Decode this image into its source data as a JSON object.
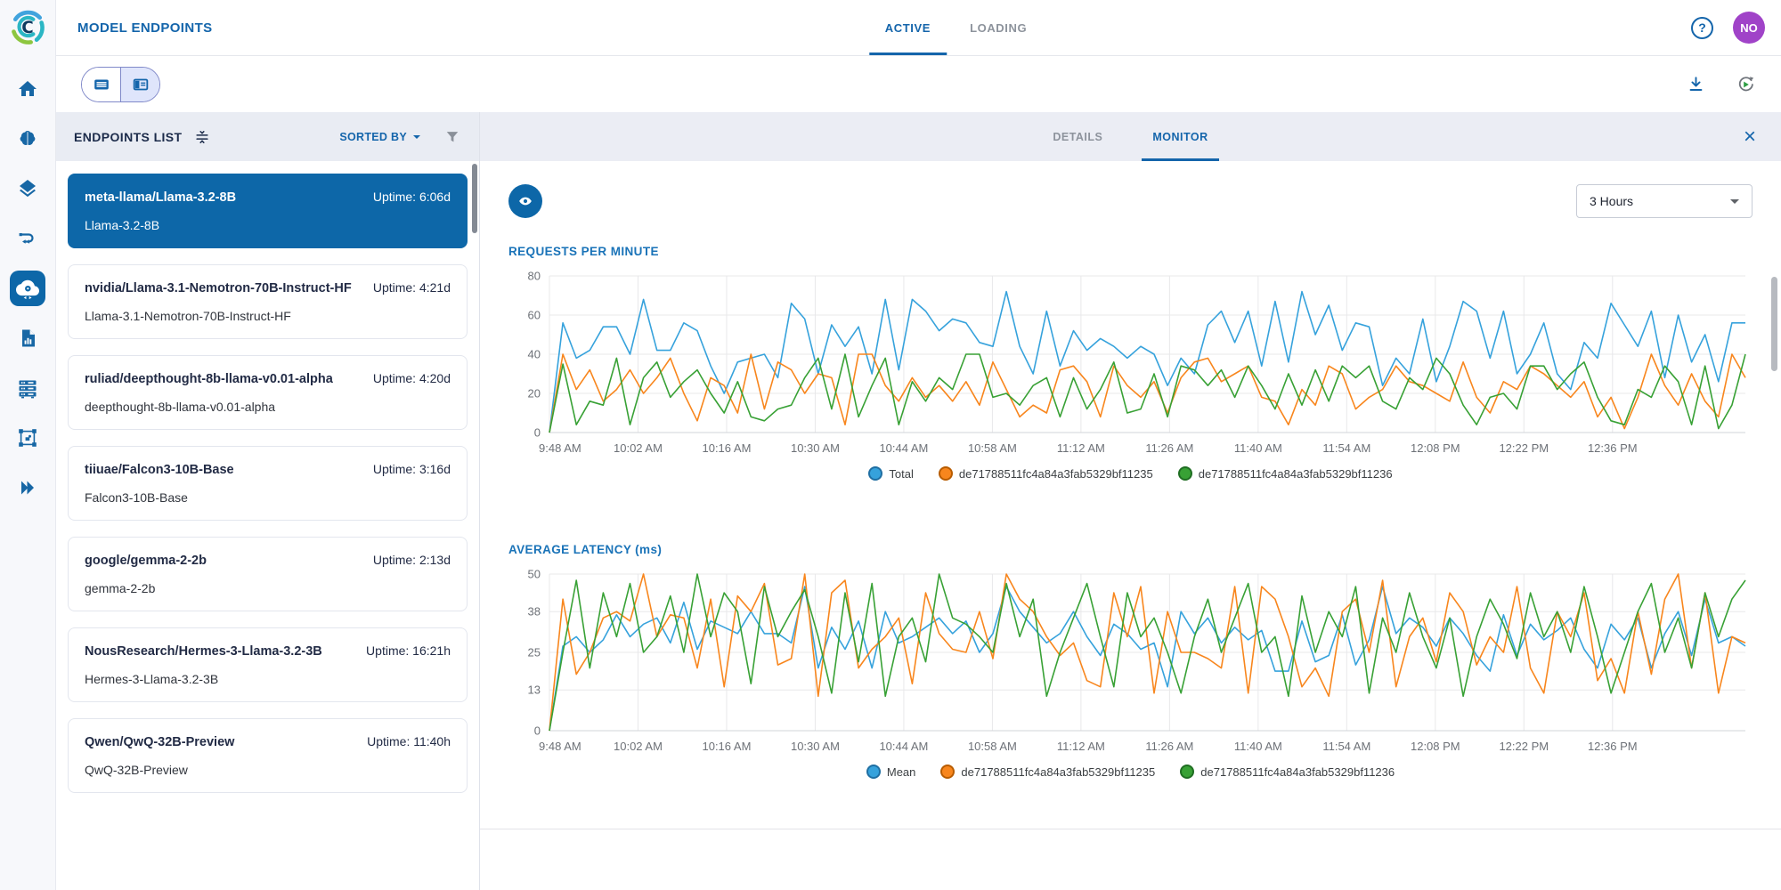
{
  "header": {
    "title": "MODEL ENDPOINTS",
    "logo_glyph": "C",
    "tabs": [
      {
        "label": "ACTIVE",
        "active": true
      },
      {
        "label": "LOADING",
        "active": false
      }
    ],
    "help_glyph": "?",
    "avatar_initials": "NO"
  },
  "toolbar": {
    "view_toggle": [
      "list-view",
      "split-view"
    ],
    "active_view": "split-view",
    "right_icons": [
      "download-icon",
      "auto-refresh-icon"
    ]
  },
  "nav_rail": {
    "icons": [
      "home",
      "models",
      "layers",
      "workflows",
      "deployments",
      "reports",
      "compute",
      "labeling",
      "modules"
    ],
    "active": "deployments"
  },
  "endpoints_panel": {
    "title": "ENDPOINTS LIST",
    "sorted_by_label": "SORTED BY",
    "items": [
      {
        "name": "meta-llama/Llama-3.2-8B",
        "uptime": "Uptime: 6:06d",
        "subtitle": "Llama-3.2-8B",
        "selected": true
      },
      {
        "name": "nvidia/Llama-3.1-Nemotron-70B-Instruct-HF",
        "uptime": "Uptime: 4:21d",
        "subtitle": "Llama-3.1-Nemotron-70B-Instruct-HF",
        "selected": false
      },
      {
        "name": "ruliad/deepthought-8b-llama-v0.01-alpha",
        "uptime": "Uptime: 4:20d",
        "subtitle": "deepthought-8b-llama-v0.01-alpha",
        "selected": false
      },
      {
        "name": "tiiuae/Falcon3-10B-Base",
        "uptime": "Uptime: 3:16d",
        "subtitle": "Falcon3-10B-Base",
        "selected": false
      },
      {
        "name": "google/gemma-2-2b",
        "uptime": "Uptime: 2:13d",
        "subtitle": "gemma-2-2b",
        "selected": false
      },
      {
        "name": "NousResearch/Hermes-3-Llama-3.2-3B",
        "uptime": "Uptime: 16:21h",
        "subtitle": "Hermes-3-Llama-3.2-3B",
        "selected": false
      },
      {
        "name": "Qwen/QwQ-32B-Preview",
        "uptime": "Uptime: 11:40h",
        "subtitle": "QwQ-32B-Preview",
        "selected": false
      }
    ]
  },
  "monitor_panel": {
    "tabs": [
      {
        "label": "DETAILS",
        "active": false
      },
      {
        "label": "MONITOR",
        "active": true
      }
    ],
    "close_glyph": "×",
    "time_range": "3 Hours"
  },
  "colors": {
    "accent": "#1465ab",
    "selected_card": "#0d67a8",
    "avatar": "#a043c8",
    "chart_blue": "#36a2dc",
    "chart_orange": "#f8861d",
    "chart_green": "#38a135"
  },
  "chart_data": [
    {
      "type": "line",
      "title": "REQUESTS PER MINUTE",
      "x_labels": [
        "9:48 AM",
        "10:02 AM",
        "10:16 AM",
        "10:30 AM",
        "10:44 AM",
        "10:58 AM",
        "11:12 AM",
        "11:26 AM",
        "11:40 AM",
        "11:54 AM",
        "12:08 PM",
        "12:22 PM",
        "12:36 PM"
      ],
      "ylim": [
        0,
        80
      ],
      "yticks": [
        0,
        20,
        40,
        60,
        80
      ],
      "grid": true,
      "legend_position": "bottom",
      "series": [
        {
          "name": "Total",
          "color": "#36a2dc",
          "edge": "#1f6fa3",
          "values": [
            0,
            56,
            38,
            42,
            54,
            54,
            40,
            68,
            42,
            42,
            56,
            52,
            34,
            20,
            36,
            38,
            40,
            28,
            66,
            58,
            30,
            55,
            44,
            54,
            30,
            68,
            32,
            68,
            62,
            52,
            58,
            56,
            46,
            44,
            72,
            44,
            30,
            62,
            34,
            52,
            42,
            48,
            44,
            38,
            44,
            40,
            24,
            38,
            30,
            55,
            62,
            46,
            62,
            34,
            67,
            36,
            72,
            50,
            65,
            42,
            56,
            54,
            24,
            38,
            30,
            58,
            26,
            44,
            67,
            62,
            38,
            62,
            30,
            40,
            56,
            30,
            22,
            46,
            38,
            66,
            55,
            44,
            62,
            28,
            60,
            36,
            50,
            26,
            56,
            56
          ]
        },
        {
          "name": "de71788511fc4a84a3fab5329bf11235",
          "color": "#f8861d",
          "edge": "#b85c00",
          "values": [
            0,
            40,
            22,
            32,
            16,
            22,
            32,
            20,
            28,
            38,
            20,
            6,
            28,
            24,
            10,
            40,
            12,
            36,
            32,
            20,
            30,
            28,
            4,
            40,
            40,
            24,
            16,
            28,
            18,
            24,
            16,
            26,
            14,
            36,
            22,
            8,
            14,
            10,
            32,
            34,
            26,
            8,
            34,
            24,
            18,
            26,
            10,
            28,
            36,
            38,
            26,
            30,
            34,
            18,
            16,
            4,
            22,
            14,
            34,
            30,
            12,
            18,
            22,
            34,
            26,
            24,
            20,
            16,
            36,
            18,
            10,
            26,
            22,
            34,
            30,
            24,
            18,
            26,
            8,
            18,
            2,
            18,
            40,
            24,
            14,
            30,
            16,
            8,
            40,
            28
          ]
        },
        {
          "name": "de71788511fc4a84a3fab5329bf11236",
          "color": "#38a135",
          "edge": "#1f6e22",
          "values": [
            0,
            35,
            4,
            16,
            14,
            38,
            4,
            28,
            36,
            18,
            26,
            32,
            20,
            10,
            26,
            8,
            6,
            12,
            14,
            28,
            38,
            12,
            40,
            8,
            24,
            38,
            4,
            26,
            16,
            28,
            22,
            40,
            40,
            18,
            20,
            14,
            24,
            28,
            8,
            28,
            12,
            22,
            36,
            10,
            12,
            30,
            8,
            34,
            32,
            24,
            32,
            18,
            34,
            24,
            12,
            30,
            14,
            32,
            16,
            34,
            28,
            34,
            16,
            12,
            28,
            22,
            38,
            30,
            14,
            4,
            18,
            20,
            12,
            34,
            34,
            22,
            30,
            36,
            18,
            6,
            4,
            22,
            18,
            34,
            26,
            4,
            34,
            2,
            14,
            40
          ]
        }
      ]
    },
    {
      "type": "line",
      "title": "AVERAGE LATENCY (ms)",
      "x_labels": [
        "9:48 AM",
        "10:02 AM",
        "10:16 AM",
        "10:30 AM",
        "10:44 AM",
        "10:58 AM",
        "11:12 AM",
        "11:26 AM",
        "11:40 AM",
        "11:54 AM",
        "12:08 PM",
        "12:22 PM",
        "12:36 PM"
      ],
      "ylim": [
        0,
        50
      ],
      "yticks": [
        0,
        13,
        25,
        38,
        50
      ],
      "grid": true,
      "legend_position": "bottom",
      "series": [
        {
          "name": "Mean",
          "color": "#36a2dc",
          "edge": "#1f6fa3",
          "values": [
            0,
            27,
            30,
            25,
            29,
            37,
            30,
            34,
            36,
            28,
            41,
            26,
            35,
            33,
            31,
            38,
            31,
            31,
            28,
            46,
            20,
            33,
            26,
            35,
            20,
            38,
            28,
            30,
            33,
            36,
            31,
            35,
            25,
            31,
            46,
            38,
            33,
            28,
            31,
            38,
            30,
            24,
            34,
            31,
            26,
            28,
            14,
            38,
            31,
            36,
            28,
            33,
            29,
            32,
            19,
            19,
            35,
            22,
            24,
            37,
            21,
            29,
            46,
            31,
            36,
            33,
            27,
            36,
            31,
            24,
            19,
            37,
            24,
            34,
            29,
            32,
            36,
            26,
            20,
            34,
            29,
            36,
            20,
            31,
            38,
            24,
            42,
            28,
            30,
            27
          ]
        },
        {
          "name": "de71788511fc4a84a3fab5329bf11235",
          "color": "#f8861d",
          "edge": "#b85c00",
          "values": [
            0,
            42,
            18,
            25,
            36,
            38,
            35,
            50,
            30,
            37,
            36,
            20,
            42,
            14,
            43,
            38,
            47,
            21,
            23,
            50,
            11,
            44,
            48,
            20,
            26,
            30,
            36,
            15,
            44,
            31,
            26,
            25,
            38,
            23,
            50,
            42,
            38,
            30,
            24,
            28,
            16,
            14,
            44,
            30,
            46,
            12,
            38,
            25,
            25,
            23,
            20,
            46,
            12,
            46,
            42,
            30,
            14,
            20,
            11,
            38,
            42,
            25,
            48,
            14,
            30,
            36,
            22,
            44,
            38,
            21,
            30,
            25,
            46,
            20,
            12,
            38,
            30,
            44,
            16,
            23,
            12,
            38,
            18,
            42,
            50,
            20,
            44,
            12,
            30,
            28
          ]
        },
        {
          "name": "de71788511fc4a84a3fab5329bf11236",
          "color": "#38a135",
          "edge": "#1f6e22",
          "values": [
            0,
            25,
            48,
            20,
            44,
            30,
            47,
            25,
            30,
            43,
            25,
            50,
            30,
            44,
            38,
            15,
            46,
            30,
            38,
            45,
            30,
            12,
            44,
            22,
            47,
            11,
            30,
            36,
            22,
            50,
            36,
            34,
            30,
            25,
            47,
            30,
            42,
            11,
            25,
            36,
            47,
            30,
            14,
            44,
            30,
            36,
            25,
            12,
            30,
            42,
            25,
            36,
            47,
            25,
            30,
            11,
            43,
            25,
            38,
            30,
            46,
            12,
            36,
            25,
            44,
            30,
            20,
            36,
            11,
            30,
            42,
            34,
            23,
            44,
            30,
            38,
            25,
            46,
            30,
            12,
            25,
            38,
            47,
            25,
            36,
            20,
            44,
            30,
            42,
            48
          ]
        }
      ]
    }
  ]
}
